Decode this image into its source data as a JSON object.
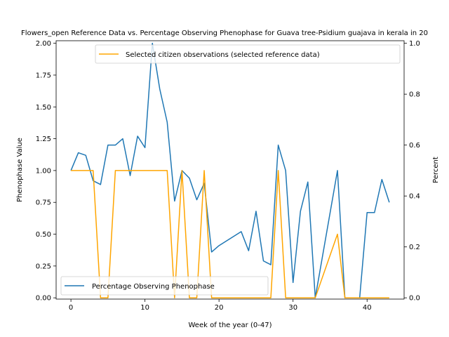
{
  "chart_data": {
    "type": "line",
    "title": "Flowers_open Reference Data vs. Percentage Observing Phenophase for Guava tree-Psidium guajava in kerala in 20",
    "xlabel": "Week of the year (0-47)",
    "ylabel_left": "Phenophase Value",
    "ylabel_right": "Percent",
    "xlim": [
      -2,
      45
    ],
    "ylim_left": [
      -0.01,
      2.02
    ],
    "ylim_right": [
      -0.005,
      1.01
    ],
    "xticks": [
      0,
      10,
      20,
      30,
      40
    ],
    "yticks_left": [
      0.0,
      0.25,
      0.5,
      0.75,
      1.0,
      1.25,
      1.5,
      1.75,
      2.0
    ],
    "yticks_left_labels": [
      "0.00",
      "0.25",
      "0.50",
      "0.75",
      "1.00",
      "1.25",
      "1.50",
      "1.75",
      "2.00"
    ],
    "yticks_right": [
      0.0,
      0.2,
      0.4,
      0.6,
      0.8,
      1.0
    ],
    "yticks_right_labels": [
      "0.0",
      "0.2",
      "0.4",
      "0.6",
      "0.8",
      "1.0"
    ],
    "grid": false,
    "series": [
      {
        "name": "Percentage Observing Phenophase",
        "axis": "left",
        "color": "#1f77b4",
        "legend_location": "lower-left",
        "x": [
          0,
          1,
          2,
          3,
          4,
          5,
          6,
          7,
          8,
          9,
          10,
          11,
          12,
          13,
          14,
          15,
          16,
          17,
          18,
          19,
          20,
          23,
          24,
          25,
          26,
          27,
          28,
          29,
          30,
          31,
          32,
          33,
          36,
          37,
          38,
          39,
          40,
          41,
          42,
          43
        ],
        "y": [
          1.0,
          1.14,
          1.12,
          0.92,
          0.89,
          1.2,
          1.2,
          1.25,
          0.96,
          1.27,
          1.18,
          2.0,
          1.64,
          1.38,
          0.76,
          1.0,
          0.94,
          0.77,
          0.9,
          0.36,
          0.41,
          0.52,
          0.37,
          0.68,
          0.29,
          0.26,
          1.2,
          1.0,
          0.12,
          0.68,
          0.91,
          0.0,
          1.0,
          0.0,
          0.0,
          0.0,
          0.67,
          0.67,
          0.93,
          0.75
        ]
      },
      {
        "name": "Selected citizen observations (selected reference data)",
        "axis": "right",
        "color": "#ffa500",
        "legend_location": "upper-right",
        "x": [
          0,
          1,
          2,
          3,
          4,
          5,
          6,
          7,
          8,
          9,
          10,
          11,
          12,
          13,
          14,
          15,
          16,
          17,
          18,
          19,
          20,
          23,
          24,
          25,
          26,
          27,
          28,
          29,
          30,
          31,
          32,
          33,
          36,
          37,
          38,
          39,
          40,
          41,
          42,
          43
        ],
        "y": [
          0.5,
          0.5,
          0.5,
          0.5,
          0.0,
          0.0,
          0.5,
          0.5,
          0.5,
          0.5,
          0.5,
          0.5,
          0.5,
          0.5,
          0.0,
          0.5,
          0.0,
          0.0,
          0.5,
          0.0,
          0.0,
          0.0,
          0.0,
          0.0,
          0.0,
          0.0,
          0.5,
          0.0,
          0.0,
          0.0,
          0.0,
          0.0,
          0.25,
          0.0,
          0.0,
          0.0,
          0.0,
          0.0,
          0.0,
          0.0
        ]
      }
    ]
  }
}
